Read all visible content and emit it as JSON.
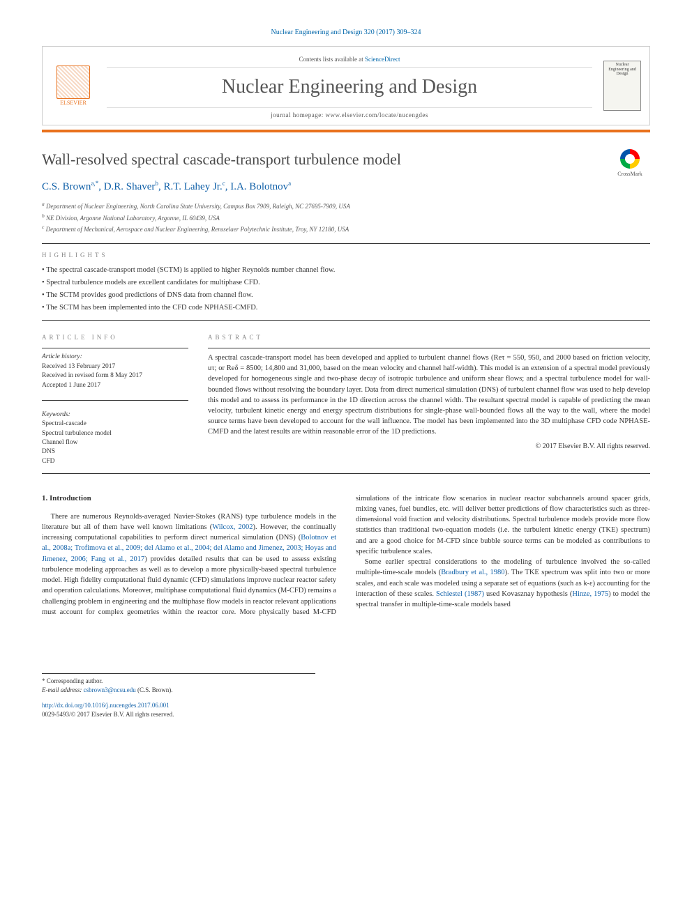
{
  "header": {
    "journal_ref": "Nuclear Engineering and Design 320 (2017) 309–324",
    "contents_prefix": "Contents lists available at ",
    "contents_link": "ScienceDirect",
    "journal_title": "Nuclear Engineering and Design",
    "homepage_prefix": "journal homepage: ",
    "homepage_url": "www.elsevier.com/locate/nucengdes",
    "publisher_name": "ELSEVIER",
    "cover_label": "Nuclear Engineering and Design",
    "crossmark_label": "CrossMark",
    "colors": {
      "accent_orange": "#e9711c",
      "link_blue": "#1060a8",
      "rule_gray": "#333333"
    }
  },
  "article": {
    "title": "Wall-resolved spectral cascade-transport turbulence model",
    "authors_html": "C.S. Brown",
    "authors_rest": ", D.R. Shaver",
    "authors_rest2": ", R.T. Lahey Jr.",
    "authors_rest3": ", I.A. Bolotnov",
    "sup_a": "a,",
    "sup_star": "*",
    "sup_b": "b",
    "sup_c": "c",
    "sup_a2": "a",
    "affiliations": {
      "a": "Department of Nuclear Engineering, North Carolina State University, Campus Box 7909, Raleigh, NC 27695-7909, USA",
      "b": "NE Division, Argonne National Laboratory, Argonne, IL 60439, USA",
      "c": "Department of Mechanical, Aerospace and Nuclear Engineering, Rensselaer Polytechnic Institute, Troy, NY 12180, USA"
    }
  },
  "highlights": {
    "heading": "highlights",
    "items": [
      "The spectral cascade-transport model (SCTM) is applied to higher Reynolds number channel flow.",
      "Spectral turbulence models are excellent candidates for multiphase CFD.",
      "The SCTM provides good predictions of DNS data from channel flow.",
      "The SCTM has been implemented into the CFD code NPHASE-CMFD."
    ]
  },
  "info": {
    "heading": "article info",
    "history_head": "Article history:",
    "received": "Received 13 February 2017",
    "revised": "Received in revised form 8 May 2017",
    "accepted": "Accepted 1 June 2017",
    "keywords_head": "Keywords:",
    "keywords": [
      "Spectral-cascade",
      "Spectral turbulence model",
      "Channel flow",
      "DNS",
      "CFD"
    ]
  },
  "abstract": {
    "heading": "abstract",
    "text": "A spectral cascade-transport model has been developed and applied to turbulent channel flows (Reτ = 550, 950, and 2000 based on friction velocity, uτ; or Reδ = 8500; 14,800 and 31,000, based on the mean velocity and channel half-width). This model is an extension of a spectral model previously developed for homogeneous single and two-phase decay of isotropic turbulence and uniform shear flows; and a spectral turbulence model for wall-bounded flows without resolving the boundary layer. Data from direct numerical simulation (DNS) of turbulent channel flow was used to help develop this model and to assess its performance in the 1D direction across the channel width. The resultant spectral model is capable of predicting the mean velocity, turbulent kinetic energy and energy spectrum distributions for single-phase wall-bounded flows all the way to the wall, where the model source terms have been developed to account for the wall influence. The model has been implemented into the 3D multiphase CFD code NPHASE-CMFD and the latest results are within reasonable error of the 1D predictions.",
    "copyright": "© 2017 Elsevier B.V. All rights reserved."
  },
  "body": {
    "section_title": "1. Introduction",
    "p1a": "There are numerous Reynolds-averaged Navier-Stokes (RANS) type turbulence models in the literature but all of them have well known limitations (",
    "p1_ref1": "Wilcox, 2002",
    "p1b": "). However, the continually increasing computational capabilities to perform direct numerical simulation (DNS) (",
    "p1_ref2": "Bolotnov et al., 2008a; Trofimova et al., 2009; del Alamo et al., 2004; del Alamo and Jimenez, 2003; Hoyas and Jimenez, 2006; Fang et al., 2017",
    "p1c": ") provides detailed results that can be used to assess existing turbulence modeling approaches as well as to develop a more physically-based spectral turbulence model. High fidelity computational fluid dynamic (CFD) simulations improve nuclear reactor safety and operation calculations. Moreover, multiphase computational fluid dynamics (M-CFD) remains a challenging problem in engineering and the multiphase ",
    "p1d": "flow models in reactor relevant applications must account for complex geometries within the reactor core. More physically based M-CFD simulations of the intricate flow scenarios in nuclear reactor subchannels around spacer grids, mixing vanes, fuel bundles, etc. will deliver better predictions of flow characteristics such as three-dimensional void fraction and velocity distributions. Spectral turbulence models provide more flow statistics than traditional two-equation models (i.e. the turbulent kinetic energy (TKE) spectrum) and are a good choice for M-CFD since bubble source terms can be modeled as contributions to specific turbulence scales.",
    "p2a": "Some earlier spectral considerations to the modeling of turbulence involved the so-called multiple-time-scale models (",
    "p2_ref1": "Bradbury et al., 1980",
    "p2b": "). The TKE spectrum was split into two or more scales, and each scale was modeled using a separate set of equations (such as k-ε) accounting for the interaction of these scales. ",
    "p2_ref2": "Schiestel (1987)",
    "p2c": " used Kovasznay hypothesis (",
    "p2_ref3": "Hinze, 1975",
    "p2d": ") to model the spectral transfer in multiple-time-scale models based"
  },
  "footnotes": {
    "corresponding": "* Corresponding author.",
    "email_label": "E-mail address: ",
    "email": "csbrown3@ncsu.edu",
    "email_suffix": " (C.S. Brown)."
  },
  "doi": {
    "url": "http://dx.doi.org/10.1016/j.nucengdes.2017.06.001",
    "issn_line": "0029-5493/© 2017 Elsevier B.V. All rights reserved."
  }
}
